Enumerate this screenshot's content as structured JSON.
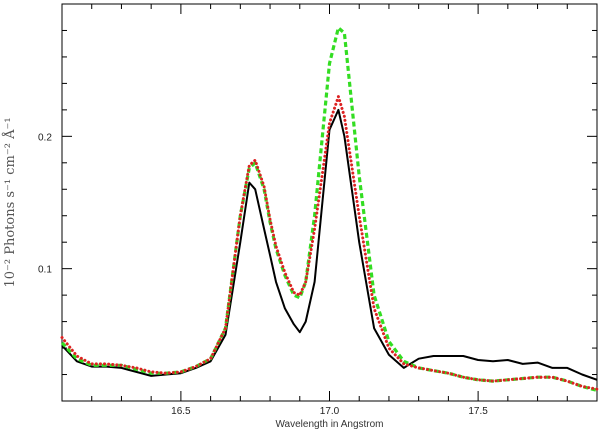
{
  "chart_data": {
    "type": "line",
    "title": "",
    "xlabel": "Wavelength in Angstrom",
    "ylabel": "10⁻² Photons s⁻¹ cm⁻² Å⁻¹",
    "xlim": [
      16.1,
      17.9
    ],
    "ylim": [
      0.0,
      0.3
    ],
    "xticks": [
      16.5,
      17.0,
      17.5
    ],
    "xtick_labels": [
      "16.5",
      "17.0",
      "17.5"
    ],
    "yticks": [
      0.1,
      0.2
    ],
    "ytick_labels": [
      "0.1",
      "0.2"
    ],
    "grid": false,
    "series": [
      {
        "color": "#000000",
        "dash": "solid",
        "x": [
          16.1,
          16.15,
          16.2,
          16.25,
          16.3,
          16.35,
          16.4,
          16.45,
          16.5,
          16.55,
          16.6,
          16.65,
          16.7,
          16.73,
          16.75,
          16.78,
          16.8,
          16.82,
          16.85,
          16.88,
          16.9,
          16.92,
          16.95,
          17.0,
          17.03,
          17.05,
          17.1,
          17.15,
          17.2,
          17.25,
          17.3,
          17.35,
          17.4,
          17.45,
          17.5,
          17.55,
          17.6,
          17.65,
          17.7,
          17.75,
          17.8,
          17.85,
          17.9
        ],
        "y": [
          0.042,
          0.03,
          0.026,
          0.026,
          0.025,
          0.022,
          0.019,
          0.02,
          0.021,
          0.025,
          0.03,
          0.05,
          0.12,
          0.165,
          0.16,
          0.13,
          0.11,
          0.09,
          0.07,
          0.058,
          0.052,
          0.06,
          0.09,
          0.205,
          0.22,
          0.2,
          0.12,
          0.055,
          0.035,
          0.025,
          0.032,
          0.034,
          0.034,
          0.034,
          0.031,
          0.03,
          0.031,
          0.028,
          0.029,
          0.025,
          0.025,
          0.02,
          0.016
        ]
      },
      {
        "color": "#33dd22",
        "dash": "dashed",
        "x": [
          16.1,
          16.15,
          16.2,
          16.25,
          16.3,
          16.35,
          16.4,
          16.45,
          16.5,
          16.55,
          16.6,
          16.65,
          16.7,
          16.73,
          16.75,
          16.78,
          16.8,
          16.82,
          16.85,
          16.88,
          16.9,
          16.92,
          16.95,
          17.0,
          17.03,
          17.05,
          17.1,
          17.15,
          17.2,
          17.25,
          17.3,
          17.35,
          17.4,
          17.45,
          17.5,
          17.55,
          17.6,
          17.65,
          17.7,
          17.75,
          17.8,
          17.85,
          17.9
        ],
        "y": [
          0.044,
          0.032,
          0.027,
          0.027,
          0.027,
          0.024,
          0.021,
          0.021,
          0.022,
          0.026,
          0.032,
          0.055,
          0.14,
          0.176,
          0.18,
          0.16,
          0.135,
          0.115,
          0.095,
          0.08,
          0.078,
          0.09,
          0.14,
          0.255,
          0.282,
          0.278,
          0.17,
          0.08,
          0.045,
          0.03,
          0.025,
          0.023,
          0.021,
          0.018,
          0.016,
          0.015,
          0.016,
          0.017,
          0.018,
          0.018,
          0.015,
          0.011,
          0.008
        ]
      },
      {
        "color": "#dd2222",
        "dash": "dotted",
        "x": [
          16.1,
          16.15,
          16.2,
          16.25,
          16.3,
          16.35,
          16.4,
          16.45,
          16.5,
          16.55,
          16.6,
          16.65,
          16.7,
          16.73,
          16.75,
          16.78,
          16.8,
          16.82,
          16.85,
          16.88,
          16.9,
          16.92,
          16.95,
          17.0,
          17.03,
          17.05,
          17.1,
          17.15,
          17.2,
          17.25,
          17.3,
          17.35,
          17.4,
          17.45,
          17.5,
          17.55,
          17.6,
          17.65,
          17.7,
          17.75,
          17.8,
          17.85,
          17.9
        ],
        "y": [
          0.048,
          0.034,
          0.028,
          0.028,
          0.027,
          0.025,
          0.022,
          0.021,
          0.022,
          0.026,
          0.032,
          0.055,
          0.14,
          0.178,
          0.182,
          0.162,
          0.137,
          0.117,
          0.097,
          0.082,
          0.08,
          0.09,
          0.13,
          0.21,
          0.23,
          0.215,
          0.14,
          0.07,
          0.04,
          0.028,
          0.025,
          0.023,
          0.021,
          0.018,
          0.016,
          0.015,
          0.016,
          0.017,
          0.018,
          0.018,
          0.015,
          0.011,
          0.009
        ]
      }
    ]
  }
}
